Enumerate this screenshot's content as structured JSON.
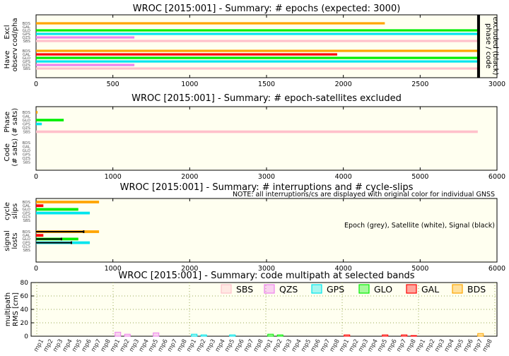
{
  "colors": {
    "BDS": "#ffa500",
    "GAL": "#ff0000",
    "GLO": "#00ee00",
    "GPS": "#00e5ee",
    "QZS": "#ee82ee",
    "SBS": "#ffc0cb",
    "bg": "#fffff0",
    "grid": "#99aa55",
    "phase_code_bar": "#000000"
  },
  "systems_order": [
    "BDS",
    "GAL",
    "GLO",
    "GPS",
    "QZS",
    "SBS"
  ],
  "system_tick_labels": [
    "BDS",
    "GAL",
    "GLO",
    "GPS",
    "QZS",
    "SBS"
  ],
  "chart_data": [
    {
      "id": "epochs",
      "type": "bar",
      "orientation": "horizontal",
      "title": "WROC [2015:001] - Summary: # epochs (expected: 3000)",
      "groups": [
        {
          "label": "Excl cod/pha",
          "label_lines": [
            "Excl",
            "cod/pha"
          ],
          "values": {
            "BDS": 2270,
            "GAL": 0,
            "GLO": 2880,
            "GPS": 2880,
            "QZS": 640,
            "SBS": 2880
          }
        },
        {
          "label": "Have observ",
          "label_lines": [
            "Have",
            "observ"
          ],
          "values": {
            "BDS": 2880,
            "GAL": 1960,
            "GLO": 2880,
            "GPS": 2880,
            "QZS": 640,
            "SBS": 2880
          }
        }
      ],
      "xlim": [
        0,
        3000
      ],
      "xticks": [
        0,
        500,
        1000,
        1500,
        2000,
        2500,
        3000
      ],
      "annotation_vertical": [
        "phase / code",
        "excluded (black)"
      ],
      "vline_x": 2880,
      "grid": false
    },
    {
      "id": "excluded",
      "type": "bar",
      "orientation": "horizontal",
      "title": "WROC [2015:001] - Summary: # epoch-satellites excluded",
      "groups": [
        {
          "label": "Phase (# sats)",
          "label_lines": [
            "Phase",
            "(# sats)"
          ],
          "values": {
            "BDS": 20,
            "GAL": 0,
            "GLO": 360,
            "GPS": 75,
            "QZS": 0,
            "SBS": 5750
          }
        },
        {
          "label": "Code (# sats)",
          "label_lines": [
            "Code",
            "(# sats)"
          ],
          "values": {
            "BDS": 0,
            "GAL": 0,
            "GLO": 0,
            "GPS": 0,
            "QZS": 0,
            "SBS": 0
          }
        }
      ],
      "xlim": [
        0,
        6000
      ],
      "xticks": [
        0,
        1000,
        2000,
        3000,
        4000,
        5000,
        6000
      ],
      "grid": false
    },
    {
      "id": "interruptions",
      "type": "bar",
      "orientation": "horizontal",
      "title": "WROC [2015:001] - Summary: # interruptions and # cycle-slips",
      "note": "NOTE: all interruptions/cs are displayed with original color for individual GNSS",
      "legend_text": "Epoch (grey), Satellite (white), Signal (black)",
      "groups": [
        {
          "label": "cycle slips",
          "label_lines": [
            "cycle",
            "slips"
          ],
          "values": {
            "BDS": 820,
            "GAL": 95,
            "GLO": 550,
            "GPS": 700,
            "QZS": 0,
            "SBS": 0
          }
        },
        {
          "label": "signal losts",
          "label_lines": [
            "signal",
            "losts"
          ],
          "values": {
            "BDS": 820,
            "GAL": 95,
            "GLO": 550,
            "GPS": 700,
            "QZS": 0,
            "SBS": 0
          },
          "signal_black": {
            "BDS": 620,
            "GAL": 0,
            "GLO": 330,
            "GPS": 460,
            "QZS": 0,
            "SBS": 0
          }
        }
      ],
      "xlim": [
        0,
        6000
      ],
      "xticks": [
        0,
        1000,
        2000,
        3000,
        4000,
        5000,
        6000
      ],
      "grid": false
    },
    {
      "id": "multipath",
      "type": "bar",
      "orientation": "vertical",
      "title": "WROC [2015:001] - Summary: code multipath at selected bands",
      "ylabel_lines": [
        "multipath",
        "RMS [cm]"
      ],
      "ylim": [
        0,
        80
      ],
      "yticks": [
        0,
        20,
        40,
        60,
        80
      ],
      "grid": true,
      "legend_position": "top-right",
      "legend": [
        "SBS",
        "QZS",
        "GPS",
        "GLO",
        "GAL",
        "BDS"
      ],
      "categories": [
        "mp1",
        "mp2",
        "mp3",
        "mp4",
        "mp5",
        "mp6",
        "mp7",
        "mp8"
      ],
      "group_order": [
        "SBS",
        "QZS",
        "GPS",
        "GLO",
        "GAL",
        "BDS"
      ],
      "series": [
        {
          "name": "SBS",
          "values": [
            0,
            0,
            0,
            0,
            0,
            0,
            0,
            0
          ]
        },
        {
          "name": "QZS",
          "values": [
            6,
            3,
            0,
            0,
            5,
            0,
            0,
            0
          ]
        },
        {
          "name": "GPS",
          "values": [
            3,
            2,
            0,
            0,
            2,
            0,
            0,
            0
          ]
        },
        {
          "name": "GLO",
          "values": [
            3,
            2,
            0,
            0,
            0,
            0,
            0,
            0
          ]
        },
        {
          "name": "GAL",
          "values": [
            2,
            0,
            0,
            0,
            2,
            0,
            2,
            1
          ]
        },
        {
          "name": "BDS",
          "values": [
            0,
            0,
            0,
            0,
            0,
            0,
            4,
            0
          ]
        }
      ]
    }
  ]
}
